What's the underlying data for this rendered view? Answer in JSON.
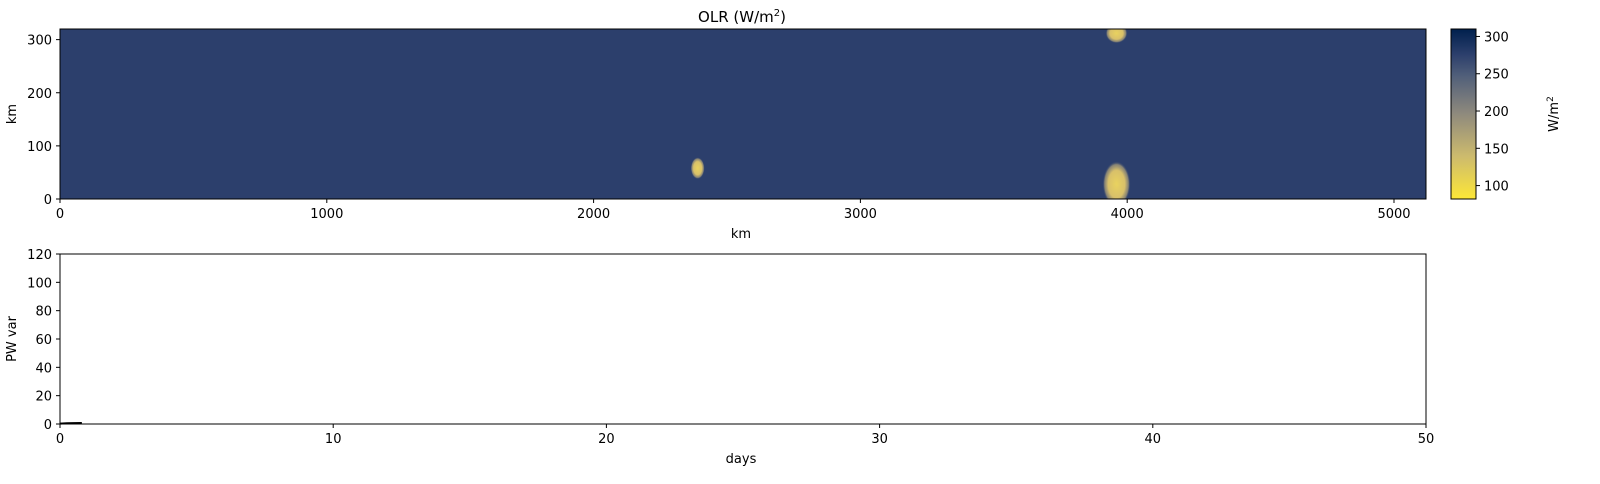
{
  "chart_data": [
    {
      "type": "heatmap",
      "title": "OLR (W/m",
      "title_superscript": "2",
      "title_suffix": ")",
      "xlabel": "km",
      "ylabel": "km",
      "xlim": [
        0,
        5120
      ],
      "ylim": [
        0,
        320
      ],
      "xticks": [
        0,
        1000,
        2000,
        3000,
        4000,
        5000
      ],
      "yticks": [
        0,
        100,
        200,
        300
      ],
      "background_value": 262,
      "colormap": "cividis_r",
      "features": [
        {
          "x": 2390,
          "y": 58,
          "value": 150,
          "note": "small cloud"
        },
        {
          "x": 3960,
          "y": 28,
          "value": 140,
          "note": "large cloud"
        },
        {
          "x": 3960,
          "y": 312,
          "value": 145,
          "note": "cloud at top edge"
        }
      ],
      "colorbar": {
        "label": "W/m",
        "label_superscript": "2",
        "range": [
          82,
          310
        ],
        "ticks": [
          100,
          150,
          200,
          250,
          300
        ]
      }
    },
    {
      "type": "line",
      "xlabel": "days",
      "ylabel": "PW var",
      "xlim": [
        0,
        50
      ],
      "ylim": [
        0,
        120
      ],
      "xticks": [
        0,
        10,
        20,
        30,
        40,
        50
      ],
      "yticks": [
        0,
        20,
        40,
        60,
        80,
        100,
        120
      ],
      "series": [
        {
          "x": [
            0,
            0.25,
            0.5,
            0.8
          ],
          "y": [
            0.3,
            0.5,
            0.6,
            0.7
          ],
          "color": "#000000"
        }
      ]
    }
  ]
}
